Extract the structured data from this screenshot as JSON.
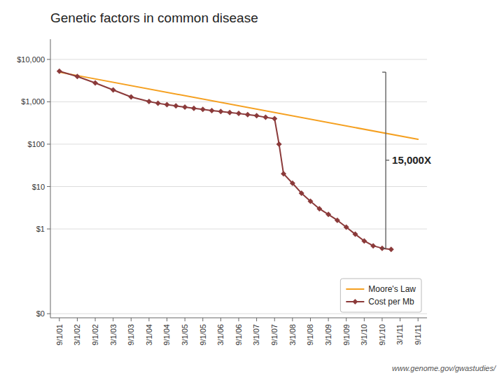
{
  "chart_data": {
    "type": "line",
    "title": "Genetic factors in common disease",
    "footnote": "www.genome.gov/gwastudies/",
    "log": "y",
    "grid": true,
    "legend": "lower right",
    "xlim": [
      2001.5,
      2012.0
    ],
    "ylim": [
      0.008,
      30000
    ],
    "xticks": [
      {
        "value": 2001.75,
        "label": "9/1/01"
      },
      {
        "value": 2002.25,
        "label": "3/1/02"
      },
      {
        "value": 2002.75,
        "label": "9/1/02"
      },
      {
        "value": 2003.25,
        "label": "3/1/03"
      },
      {
        "value": 2003.75,
        "label": "9/1/03"
      },
      {
        "value": 2004.25,
        "label": "3/1/04"
      },
      {
        "value": 2004.75,
        "label": "9/1/04"
      },
      {
        "value": 2005.25,
        "label": "3/1/05"
      },
      {
        "value": 2005.75,
        "label": "9/1/05"
      },
      {
        "value": 2006.25,
        "label": "3/1/06"
      },
      {
        "value": 2006.75,
        "label": "9/1/06"
      },
      {
        "value": 2007.25,
        "label": "3/1/07"
      },
      {
        "value": 2007.75,
        "label": "9/1/07"
      },
      {
        "value": 2008.25,
        "label": "3/1/08"
      },
      {
        "value": 2008.75,
        "label": "9/1/08"
      },
      {
        "value": 2009.25,
        "label": "3/1/09"
      },
      {
        "value": 2009.75,
        "label": "9/1/09"
      },
      {
        "value": 2010.25,
        "label": "3/1/10"
      },
      {
        "value": 2010.75,
        "label": "9/1/10"
      },
      {
        "value": 2011.25,
        "label": "3/1/11"
      },
      {
        "value": 2011.75,
        "label": "9/1/11"
      }
    ],
    "yticks": [
      {
        "value": 0.01,
        "label": "$0"
      },
      {
        "value": 1,
        "label": "$1"
      },
      {
        "value": 10,
        "label": "$10"
      },
      {
        "value": 100,
        "label": "$100"
      },
      {
        "value": 1000,
        "label": "$1,000"
      },
      {
        "value": 10000,
        "label": "$10,000"
      }
    ],
    "series": [
      {
        "name": "Moore's Law",
        "color": "#f5a020",
        "x": [
          2001.75,
          2011.75
        ],
        "values": [
          5000,
          130
        ]
      },
      {
        "name": "Cost per Mb",
        "color": "#8b3a3a",
        "marker": "diamond",
        "x": [
          2001.75,
          2002.25,
          2002.75,
          2003.25,
          2003.75,
          2004.25,
          2004.5,
          2004.75,
          2005.0,
          2005.25,
          2005.5,
          2005.75,
          2006.0,
          2006.25,
          2006.5,
          2006.75,
          2007.0,
          2007.25,
          2007.5,
          2007.75,
          2007.875,
          2008.0,
          2008.25,
          2008.5,
          2008.75,
          2009.0,
          2009.25,
          2009.5,
          2009.75,
          2010.0,
          2010.25,
          2010.5,
          2010.75,
          2011.0
        ],
        "values": [
          5282,
          3951,
          2782,
          1900,
          1300,
          1020,
          920,
          860,
          800,
          750,
          700,
          660,
          620,
          590,
          560,
          530,
          500,
          470,
          430,
          400,
          100,
          20,
          12,
          7,
          4.5,
          3.0,
          2.2,
          1.6,
          1.1,
          0.75,
          0.52,
          0.4,
          0.35,
          0.33
        ]
      }
    ],
    "annotations": [
      {
        "text": "15,000X",
        "x": 2010.85,
        "y": [
          5000,
          0.35
        ]
      }
    ]
  }
}
